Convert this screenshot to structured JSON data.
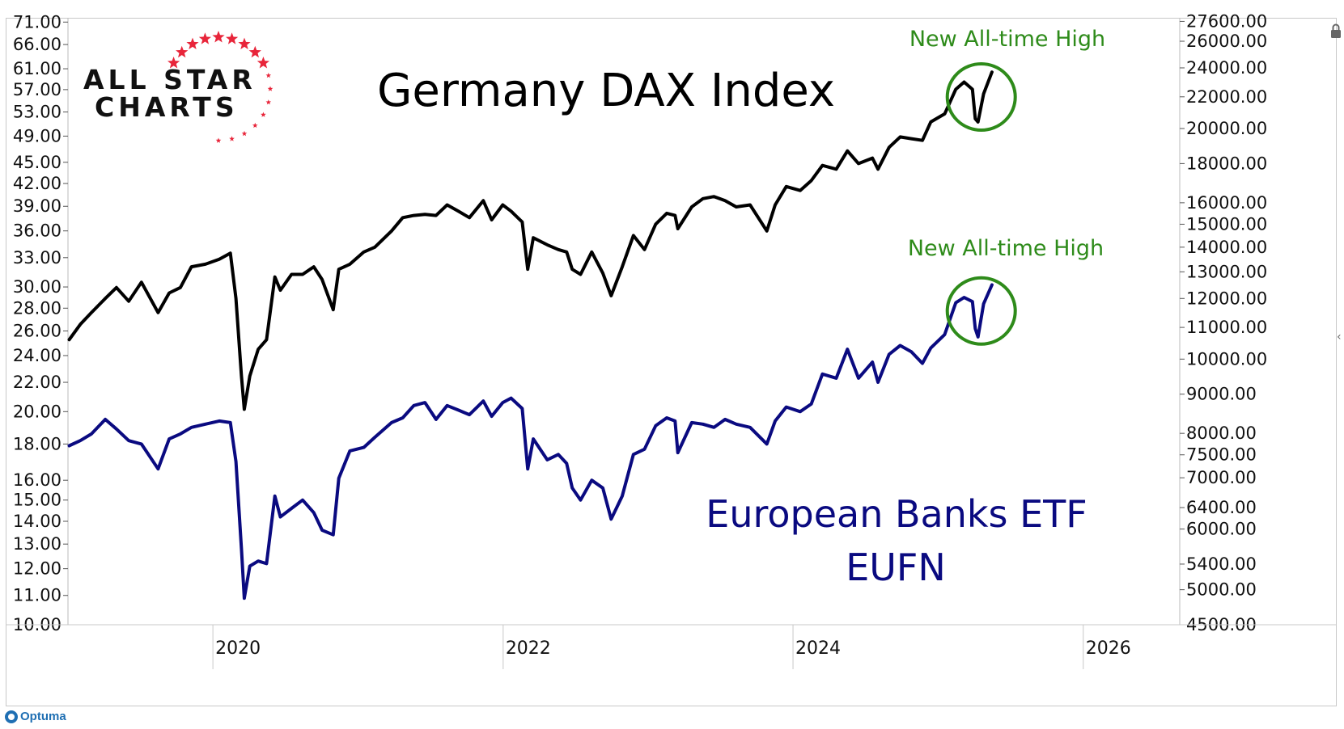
{
  "chart_data": {
    "type": "line",
    "title": "Germany DAX Index",
    "annotations": [
      {
        "name": "ath-dax-text",
        "text": "New All-time High"
      },
      {
        "name": "ath-eufn-text",
        "text": "New All-time High"
      },
      {
        "name": "eufn-label-line1",
        "text": "European Banks ETF"
      },
      {
        "name": "eufn-label-line2",
        "text": "EUFN"
      }
    ],
    "x_axis": {
      "scale": "time",
      "range": [
        "2019-01-01",
        "2026-09-01"
      ],
      "ticks": [
        {
          "label": "2020",
          "t": "2020-01-01"
        },
        {
          "label": "2022",
          "t": "2022-01-01"
        },
        {
          "label": "2024",
          "t": "2024-01-01"
        },
        {
          "label": "2026",
          "t": "2026-01-01"
        }
      ]
    },
    "y_axis_left": {
      "scale": "log",
      "range": [
        10,
        72
      ],
      "ticks": [
        "10.00",
        "11.00",
        "12.00",
        "13.00",
        "14.00",
        "15.00",
        "16.00",
        "18.00",
        "20.00",
        "22.00",
        "24.00",
        "26.00",
        "28.00",
        "30.00",
        "33.00",
        "36.00",
        "39.00",
        "42.00",
        "45.00",
        "49.00",
        "53.00",
        "57.00",
        "61.00",
        "66.00",
        "71.00"
      ]
    },
    "y_axis_right": {
      "scale": "log",
      "range": [
        4500,
        27900
      ],
      "ticks": [
        "4500.00",
        "5000.00",
        "5400.00",
        "6000.00",
        "6400.00",
        "7000.00",
        "7500.00",
        "8000.00",
        "9000.00",
        "10000.00",
        "11000.00",
        "12000.00",
        "13000.00",
        "14000.00",
        "15000.00",
        "16000.00",
        "18000.00",
        "20000.00",
        "22000.00",
        "24000.00",
        "26000.00",
        "27600.00"
      ]
    },
    "grid": false,
    "series": [
      {
        "name": "Germany DAX Index",
        "axis": "right",
        "color": "#000000",
        "points": [
          [
            "2019-01-04",
            10600
          ],
          [
            "2019-02-01",
            11100
          ],
          [
            "2019-03-01",
            11500
          ],
          [
            "2019-04-05",
            12000
          ],
          [
            "2019-05-03",
            12400
          ],
          [
            "2019-06-03",
            11900
          ],
          [
            "2019-07-05",
            12600
          ],
          [
            "2019-08-16",
            11500
          ],
          [
            "2019-09-13",
            12200
          ],
          [
            "2019-10-11",
            12400
          ],
          [
            "2019-11-08",
            13200
          ],
          [
            "2019-12-13",
            13300
          ],
          [
            "2020-01-17",
            13500
          ],
          [
            "2020-02-14",
            13750
          ],
          [
            "2020-02-28",
            12000
          ],
          [
            "2020-03-13",
            9500
          ],
          [
            "2020-03-20",
            8600
          ],
          [
            "2020-04-03",
            9500
          ],
          [
            "2020-04-24",
            10300
          ],
          [
            "2020-05-15",
            10600
          ],
          [
            "2020-06-05",
            12800
          ],
          [
            "2020-06-19",
            12300
          ],
          [
            "2020-07-17",
            12900
          ],
          [
            "2020-08-14",
            12900
          ],
          [
            "2020-09-11",
            13200
          ],
          [
            "2020-10-02",
            12700
          ],
          [
            "2020-10-30",
            11600
          ],
          [
            "2020-11-13",
            13100
          ],
          [
            "2020-12-11",
            13300
          ],
          [
            "2021-01-15",
            13800
          ],
          [
            "2021-02-12",
            14000
          ],
          [
            "2021-03-26",
            14700
          ],
          [
            "2021-04-23",
            15300
          ],
          [
            "2021-05-21",
            15400
          ],
          [
            "2021-06-18",
            15450
          ],
          [
            "2021-07-16",
            15400
          ],
          [
            "2021-08-13",
            15900
          ],
          [
            "2021-09-10",
            15600
          ],
          [
            "2021-10-08",
            15300
          ],
          [
            "2021-11-12",
            16100
          ],
          [
            "2021-12-03",
            15200
          ],
          [
            "2021-12-31",
            15900
          ],
          [
            "2022-01-21",
            15600
          ],
          [
            "2022-02-18",
            15100
          ],
          [
            "2022-03-04",
            13100
          ],
          [
            "2022-03-18",
            14400
          ],
          [
            "2022-04-22",
            14100
          ],
          [
            "2022-05-20",
            13900
          ],
          [
            "2022-06-10",
            13800
          ],
          [
            "2022-06-24",
            13100
          ],
          [
            "2022-07-15",
            12900
          ],
          [
            "2022-08-12",
            13800
          ],
          [
            "2022-09-09",
            12950
          ],
          [
            "2022-09-30",
            12100
          ],
          [
            "2022-10-28",
            13200
          ],
          [
            "2022-11-25",
            14500
          ],
          [
            "2022-12-23",
            13900
          ],
          [
            "2023-01-20",
            15000
          ],
          [
            "2023-02-17",
            15500
          ],
          [
            "2023-03-10",
            15400
          ],
          [
            "2023-03-17",
            14800
          ],
          [
            "2023-04-21",
            15800
          ],
          [
            "2023-05-19",
            16200
          ],
          [
            "2023-06-16",
            16300
          ],
          [
            "2023-07-14",
            16100
          ],
          [
            "2023-08-11",
            15800
          ],
          [
            "2023-09-15",
            15900
          ],
          [
            "2023-10-27",
            14700
          ],
          [
            "2023-11-17",
            15900
          ],
          [
            "2023-12-15",
            16800
          ],
          [
            "2024-01-19",
            16600
          ],
          [
            "2024-02-16",
            17100
          ],
          [
            "2024-03-15",
            17900
          ],
          [
            "2024-04-19",
            17700
          ],
          [
            "2024-05-17",
            18700
          ],
          [
            "2024-06-14",
            18000
          ],
          [
            "2024-07-19",
            18300
          ],
          [
            "2024-08-02",
            17700
          ],
          [
            "2024-08-30",
            18900
          ],
          [
            "2024-09-27",
            19500
          ],
          [
            "2024-10-25",
            19400
          ],
          [
            "2024-11-22",
            19300
          ],
          [
            "2024-12-13",
            20400
          ],
          [
            "2025-01-17",
            20900
          ],
          [
            "2025-02-14",
            22500
          ],
          [
            "2025-03-07",
            23000
          ],
          [
            "2025-03-28",
            22500
          ],
          [
            "2025-04-04",
            20600
          ],
          [
            "2025-04-11",
            20400
          ],
          [
            "2025-04-25",
            22200
          ],
          [
            "2025-05-16",
            23700
          ]
        ]
      },
      {
        "name": "European Banks ETF EUFN",
        "axis": "left",
        "color": "#0a0a80",
        "points": [
          [
            "2019-01-04",
            17.9
          ],
          [
            "2019-02-01",
            18.2
          ],
          [
            "2019-03-01",
            18.6
          ],
          [
            "2019-04-05",
            19.5
          ],
          [
            "2019-05-03",
            18.9
          ],
          [
            "2019-06-03",
            18.2
          ],
          [
            "2019-07-05",
            18.0
          ],
          [
            "2019-08-16",
            16.6
          ],
          [
            "2019-09-13",
            18.3
          ],
          [
            "2019-10-11",
            18.6
          ],
          [
            "2019-11-08",
            19.0
          ],
          [
            "2019-12-13",
            19.2
          ],
          [
            "2020-01-17",
            19.4
          ],
          [
            "2020-02-14",
            19.3
          ],
          [
            "2020-02-28",
            17.0
          ],
          [
            "2020-03-13",
            12.8
          ],
          [
            "2020-03-20",
            10.9
          ],
          [
            "2020-04-03",
            12.1
          ],
          [
            "2020-04-24",
            12.3
          ],
          [
            "2020-05-15",
            12.2
          ],
          [
            "2020-06-05",
            15.2
          ],
          [
            "2020-06-19",
            14.2
          ],
          [
            "2020-07-17",
            14.6
          ],
          [
            "2020-08-14",
            15.0
          ],
          [
            "2020-09-11",
            14.4
          ],
          [
            "2020-10-02",
            13.6
          ],
          [
            "2020-10-30",
            13.4
          ],
          [
            "2020-11-13",
            16.1
          ],
          [
            "2020-12-11",
            17.6
          ],
          [
            "2021-01-15",
            17.8
          ],
          [
            "2021-02-12",
            18.4
          ],
          [
            "2021-03-26",
            19.3
          ],
          [
            "2021-04-23",
            19.6
          ],
          [
            "2021-05-21",
            20.4
          ],
          [
            "2021-06-18",
            20.6
          ],
          [
            "2021-07-16",
            19.5
          ],
          [
            "2021-08-13",
            20.4
          ],
          [
            "2021-09-10",
            20.1
          ],
          [
            "2021-10-08",
            19.8
          ],
          [
            "2021-11-12",
            20.7
          ],
          [
            "2021-12-03",
            19.7
          ],
          [
            "2021-12-31",
            20.6
          ],
          [
            "2022-01-21",
            20.9
          ],
          [
            "2022-02-18",
            20.2
          ],
          [
            "2022-03-04",
            16.6
          ],
          [
            "2022-03-18",
            18.3
          ],
          [
            "2022-04-22",
            17.1
          ],
          [
            "2022-05-20",
            17.4
          ],
          [
            "2022-06-10",
            16.9
          ],
          [
            "2022-06-24",
            15.6
          ],
          [
            "2022-07-15",
            15.0
          ],
          [
            "2022-08-12",
            16.0
          ],
          [
            "2022-09-09",
            15.6
          ],
          [
            "2022-09-30",
            14.1
          ],
          [
            "2022-10-28",
            15.2
          ],
          [
            "2022-11-25",
            17.4
          ],
          [
            "2022-12-23",
            17.7
          ],
          [
            "2023-01-20",
            19.1
          ],
          [
            "2023-02-17",
            19.6
          ],
          [
            "2023-03-10",
            19.4
          ],
          [
            "2023-03-17",
            17.5
          ],
          [
            "2023-04-21",
            19.3
          ],
          [
            "2023-05-19",
            19.2
          ],
          [
            "2023-06-16",
            19.0
          ],
          [
            "2023-07-14",
            19.5
          ],
          [
            "2023-08-11",
            19.2
          ],
          [
            "2023-09-15",
            19.0
          ],
          [
            "2023-10-27",
            18.0
          ],
          [
            "2023-11-17",
            19.4
          ],
          [
            "2023-12-15",
            20.3
          ],
          [
            "2024-01-19",
            20.0
          ],
          [
            "2024-02-16",
            20.5
          ],
          [
            "2024-03-15",
            22.6
          ],
          [
            "2024-04-19",
            22.3
          ],
          [
            "2024-05-17",
            24.5
          ],
          [
            "2024-06-14",
            22.3
          ],
          [
            "2024-07-19",
            23.5
          ],
          [
            "2024-08-02",
            22.0
          ],
          [
            "2024-08-30",
            24.1
          ],
          [
            "2024-09-27",
            24.8
          ],
          [
            "2024-10-25",
            24.3
          ],
          [
            "2024-11-22",
            23.4
          ],
          [
            "2024-12-13",
            24.6
          ],
          [
            "2025-01-17",
            25.7
          ],
          [
            "2025-02-14",
            28.5
          ],
          [
            "2025-03-07",
            29.0
          ],
          [
            "2025-03-28",
            28.6
          ],
          [
            "2025-04-04",
            26.2
          ],
          [
            "2025-04-11",
            25.5
          ],
          [
            "2025-04-25",
            28.4
          ],
          [
            "2025-05-16",
            30.2
          ]
        ]
      }
    ],
    "colors": {
      "dax": "#000000",
      "eufn": "#0a0a80",
      "highlight": "#2e8b1a",
      "logo_stars": "#e8253a"
    },
    "logo": {
      "line1": "ALL STAR",
      "line2": "CHARTS"
    }
  },
  "footer": {
    "brand": "Optuma"
  },
  "icons": [
    "lock-icon",
    "collapse-panel-icon",
    "optuma-logo-icon",
    "star-icon"
  ]
}
